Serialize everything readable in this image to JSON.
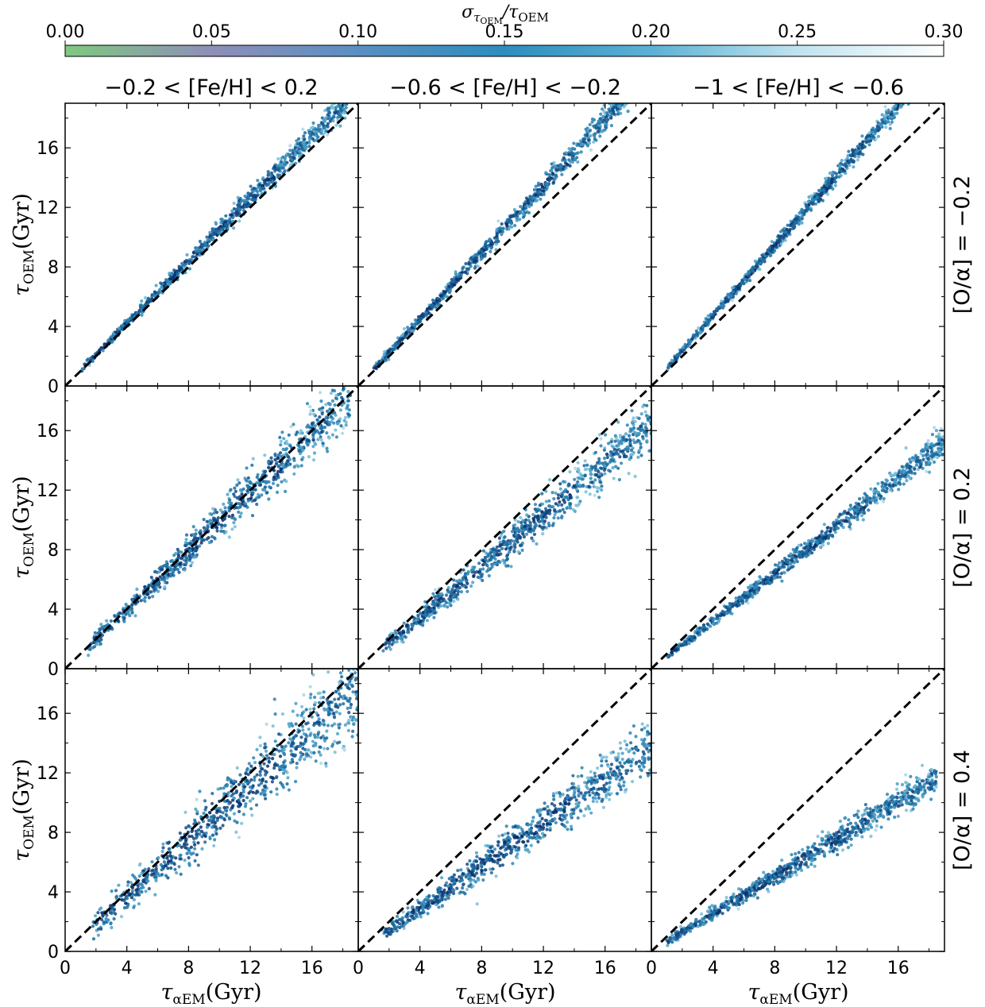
{
  "colorbar": {
    "label_main": "σ",
    "label_sub": "τ",
    "label_subsub": "OEM",
    "label_rest": "/τ",
    "label_rest_sub": "OEM",
    "ticks": [
      "0.00",
      "0.05",
      "0.10",
      "0.15",
      "0.20",
      "0.25",
      "0.30"
    ],
    "range": [
      0,
      0.3
    ],
    "colors": [
      "#7fc97f",
      "#8e8fb8",
      "#5a8fc2",
      "#2d8dbd",
      "#5bb1d4",
      "#bfe3ef",
      "#ffffff"
    ]
  },
  "columns": [
    {
      "title": "−0.2 < [Fe/H] < 0.2"
    },
    {
      "title": "−0.6 < [Fe/H] < −0.2"
    },
    {
      "title": "−1 < [Fe/H] < −0.6"
    }
  ],
  "rows": [
    {
      "label": "[O/α] = −0.2"
    },
    {
      "label": "[O/α] = 0.2"
    },
    {
      "label": "[O/α] = 0.4"
    }
  ],
  "axes": {
    "ylabel_main": "τ",
    "ylabel_sub": "OEM",
    "ylabel_unit": "(Gyr)",
    "xlabel_main": "τ",
    "xlabel_sub": "αEM",
    "xlabel_unit": "(Gyr)",
    "xticks": [
      "0",
      "4",
      "8",
      "12",
      "16"
    ],
    "yticks": [
      "0",
      "4",
      "8",
      "12",
      "16"
    ]
  },
  "chart_data": {
    "type": "scatter",
    "xlim": [
      0,
      19
    ],
    "ylim": [
      0,
      19
    ],
    "reference_line": {
      "style": "dashed",
      "slope": 1,
      "intercept": 0
    },
    "panels": [
      {
        "row": 0,
        "col": 0,
        "x_range": [
          1,
          18.5
        ],
        "slope": 1.05,
        "spread": 0.45
      },
      {
        "row": 0,
        "col": 1,
        "x_range": [
          1,
          18.5
        ],
        "slope": 1.12,
        "spread": 0.45
      },
      {
        "row": 0,
        "col": 2,
        "x_range": [
          1,
          17
        ],
        "slope": 1.18,
        "spread": 0.35
      },
      {
        "row": 1,
        "col": 0,
        "x_range": [
          1.5,
          18.5
        ],
        "slope": 0.99,
        "spread": 0.9
      },
      {
        "row": 1,
        "col": 1,
        "x_range": [
          1.5,
          19
        ],
        "slope": 0.86,
        "spread": 0.85
      },
      {
        "row": 1,
        "col": 2,
        "x_range": [
          1,
          19
        ],
        "slope": 0.8,
        "spread": 0.45
      },
      {
        "row": 2,
        "col": 0,
        "x_range": [
          1.8,
          19
        ],
        "slope": 0.93,
        "spread": 1.4
      },
      {
        "row": 2,
        "col": 1,
        "x_range": [
          1.5,
          19
        ],
        "slope": 0.72,
        "spread": 0.9
      },
      {
        "row": 2,
        "col": 2,
        "x_range": [
          1,
          18.5
        ],
        "slope": 0.63,
        "spread": 0.55
      }
    ]
  }
}
